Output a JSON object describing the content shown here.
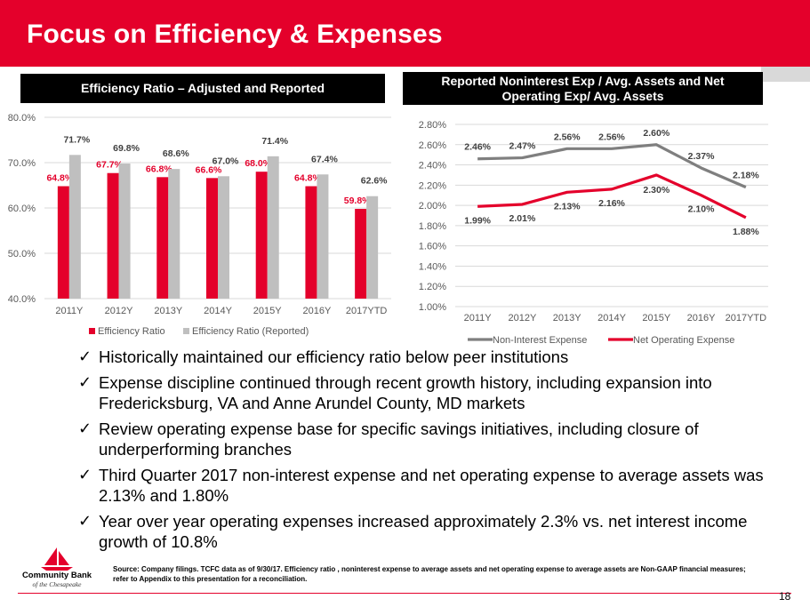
{
  "slide": {
    "title": "Focus on Efficiency & Expenses",
    "page_number": "18",
    "accent_color": "#e4002b"
  },
  "left_chart": {
    "header": "Efficiency Ratio – Adjusted and Reported"
  },
  "right_chart": {
    "header_line1": "Reported Noninterest Exp / Avg. Assets and Net",
    "header_line2": "Operating Exp/ Avg. Assets"
  },
  "chart_data": [
    {
      "type": "bar",
      "categories": [
        "2011Y",
        "2012Y",
        "2013Y",
        "2014Y",
        "2015Y",
        "2016Y",
        "2017YTD"
      ],
      "series": [
        {
          "name": "Efficiency Ratio",
          "values": [
            64.8,
            67.7,
            66.8,
            66.6,
            68.0,
            64.8,
            59.8
          ],
          "labels": [
            "64.8%",
            "67.7%",
            "66.8%",
            "66.6%",
            "68.0%",
            "64.8%",
            "59.8%"
          ],
          "color": "#e4002b"
        },
        {
          "name": "Efficiency Ratio (Reported)",
          "values": [
            71.7,
            69.8,
            68.6,
            67.0,
            71.4,
            67.4,
            62.6
          ],
          "labels": [
            "71.7%",
            "69.8%",
            "68.6%",
            "67.0%",
            "71.4%",
            "67.4%",
            "62.6%"
          ],
          "color": "#bfbfbf"
        }
      ],
      "ylim": [
        40,
        80
      ],
      "y_ticks": [
        "40.0%",
        "50.0%",
        "60.0%",
        "70.0%",
        "80.0%"
      ],
      "legend": "bottom"
    },
    {
      "type": "line",
      "categories": [
        "2011Y",
        "2012Y",
        "2013Y",
        "2014Y",
        "2015Y",
        "2016Y",
        "2017YTD"
      ],
      "series": [
        {
          "name": "Non-Interest Expense",
          "values": [
            2.46,
            2.47,
            2.56,
            2.56,
            2.6,
            2.37,
            2.18
          ],
          "labels": [
            "2.46%",
            "2.47%",
            "2.56%",
            "2.56%",
            "2.60%",
            "2.37%",
            "2.18%"
          ],
          "color": "#7f7f7f"
        },
        {
          "name": "Net Operating Expense",
          "values": [
            1.99,
            2.01,
            2.13,
            2.16,
            2.3,
            2.1,
            1.88
          ],
          "labels": [
            "1.99%",
            "2.01%",
            "2.13%",
            "2.16%",
            "2.30%",
            "2.10%",
            "1.88%"
          ],
          "color": "#e4002b"
        }
      ],
      "ylim": [
        1.0,
        2.8
      ],
      "y_ticks": [
        "1.00%",
        "1.20%",
        "1.40%",
        "1.60%",
        "1.80%",
        "2.00%",
        "2.20%",
        "2.40%",
        "2.60%",
        "2.80%"
      ],
      "legend": "bottom"
    }
  ],
  "bullets": [
    "Historically maintained our efficiency ratio below peer institutions",
    "Expense discipline continued through recent growth history, including expansion into Fredericksburg, VA and Anne Arundel County, MD markets",
    "Review operating expense base for specific savings initiatives, including closure of underperforming branches",
    "Third Quarter 2017 non-interest expense and net operating expense to average assets was 2.13% and 1.80%",
    "Year over year operating expenses increased approximately 2.3% vs. net interest income growth of 10.8%"
  ],
  "check_glyph": "✓",
  "source_note": "Source: Company filings. TCFC data as of 9/30/17. Efficiency ratio , noninterest expense to average assets and net operating expense to average assets  are Non-GAAP financial measures; refer to Appendix to this presentation for a reconciliation.",
  "logo": {
    "name": "Community Bank",
    "sub": "of the Chesapeake",
    "icon": "sailboat-icon"
  }
}
